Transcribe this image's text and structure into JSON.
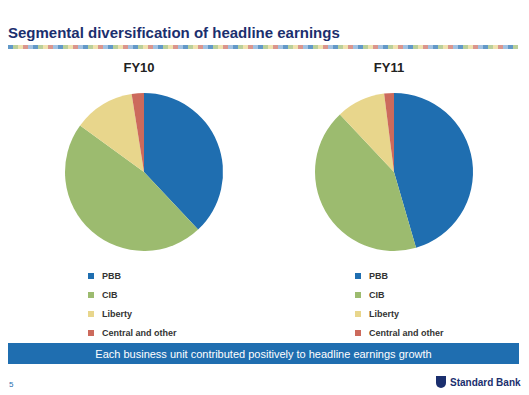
{
  "slide": {
    "title": "Segmental diversification of headline earnings",
    "banner": "Each business unit contributed positively to headline earnings growth",
    "page": "5",
    "logo": "Standard Bank"
  },
  "chart_data": [
    {
      "type": "pie",
      "title": "FY10",
      "categories": [
        "PBB",
        "CIB",
        "Liberty",
        "Central and other"
      ],
      "values": [
        38,
        47,
        12.5,
        2.5
      ],
      "colors": [
        "#1f6eb0",
        "#9cbb6f",
        "#e8d68c",
        "#cc6a5c"
      ]
    },
    {
      "type": "pie",
      "title": "FY11",
      "categories": [
        "PBB",
        "CIB",
        "Liberty",
        "Central and other"
      ],
      "values": [
        45.5,
        42.5,
        10,
        2
      ],
      "colors": [
        "#1f6eb0",
        "#9cbb6f",
        "#e8d68c",
        "#cc6a5c"
      ]
    }
  ]
}
